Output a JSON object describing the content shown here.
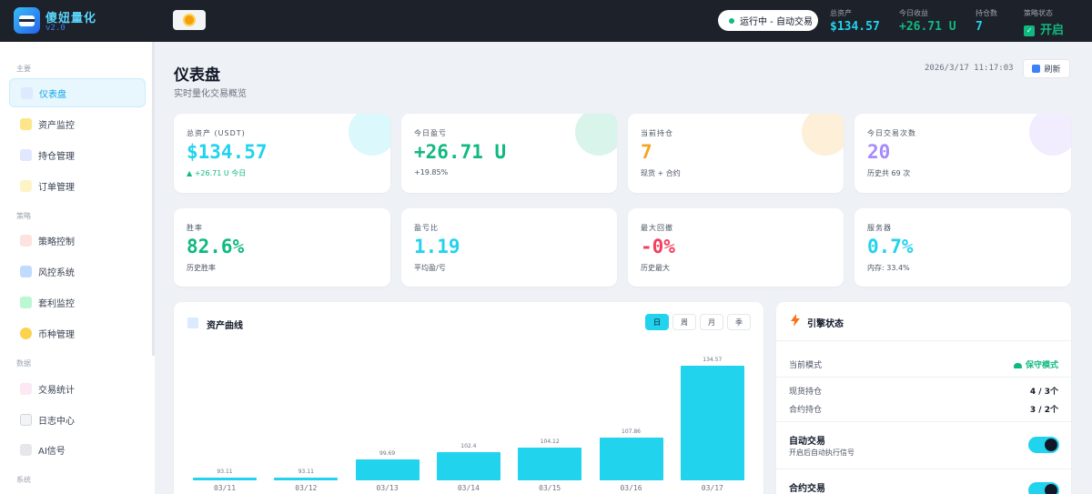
{
  "app": {
    "title": "傻妞量化",
    "version": "v2.0"
  },
  "topbar": {
    "run_status": "运行中 - 自动交易",
    "stats": [
      {
        "label": "总资产",
        "value": "$134.57",
        "color": "#22d3ee"
      },
      {
        "label": "今日收益",
        "value": "+26.71 U",
        "color": "#10b981"
      },
      {
        "label": "持仓数",
        "value": "7",
        "color": "#22d3ee"
      },
      {
        "label": "策略状态",
        "value": "开启",
        "color": "#10b981"
      }
    ]
  },
  "sidebar": {
    "sections": [
      {
        "title": "主要",
        "items": [
          "仪表盘",
          "资产监控",
          "持仓管理",
          "订单管理"
        ]
      },
      {
        "title": "策略",
        "items": [
          "策略控制",
          "风控系统",
          "套利监控",
          "币种管理"
        ]
      },
      {
        "title": "数据",
        "items": [
          "交易统计",
          "日志中心",
          "AI信号"
        ]
      },
      {
        "title": "系统",
        "items": []
      }
    ],
    "active": "仪表盘"
  },
  "page": {
    "title": "仪表盘",
    "subtitle": "实时量化交易概览",
    "datetime": "2026/3/17 11:17:03",
    "refresh_label": "刷新"
  },
  "cards": [
    {
      "label": "总资产 (USDT)",
      "value": "$134.57",
      "sub": "▲ +26.71 U 今日",
      "color": "cyan",
      "glow": "#22d3ee"
    },
    {
      "label": "今日盈亏",
      "value": "+26.71 U",
      "sub": "+19.85%",
      "color": "green",
      "glow": "#10b981"
    },
    {
      "label": "当前持仓",
      "value": "7",
      "sub": "现货 + 合约",
      "color": "orange",
      "glow": "#f59e0b"
    },
    {
      "label": "今日交易次数",
      "value": "20",
      "sub": "历史共 69 次",
      "color": "purple",
      "glow": "#a78bfa"
    },
    {
      "label": "胜率",
      "value": "82.6%",
      "sub": "历史胜率",
      "color": "green",
      "glow": "#ffffff"
    },
    {
      "label": "盈亏比",
      "value": "1.19",
      "sub": "平均盈/亏",
      "color": "cyan",
      "glow": "#ffffff"
    },
    {
      "label": "最大回撤",
      "value": "-0%",
      "sub": "历史最大",
      "color": "red",
      "glow": "#ffffff"
    },
    {
      "label": "服务器",
      "value": "0.7%",
      "sub": "内存: 33.4%",
      "color": "cyan",
      "glow": "#ffffff"
    }
  ],
  "asset_panel": {
    "title": "资产曲线",
    "ranges": [
      "日",
      "周",
      "月",
      "季"
    ],
    "active_range": "日"
  },
  "chart_data": {
    "type": "bar",
    "title": "资产曲线",
    "categories": [
      "03/11",
      "03/12",
      "03/13",
      "03/14",
      "03/15",
      "03/16",
      "03/17"
    ],
    "values": [
      93.11,
      93.11,
      99.69,
      102.4,
      104.12,
      107.86,
      134.57
    ],
    "value_labels": [
      "93.11",
      "93.11",
      "99.69",
      "102.4",
      "104.12",
      "107.86",
      "134.57"
    ],
    "ylim": [
      92,
      136
    ],
    "color": "#22d3ee",
    "grid": false
  },
  "engine": {
    "title": "引擎状态",
    "mode_label": "当前模式",
    "mode_value": "保守模式",
    "spot_label": "现货持仓",
    "spot_value": "4 / 3个",
    "contract_label": "合约持仓",
    "contract_value": "3 / 2个",
    "auto_trade": {
      "title": "自动交易",
      "desc": "开启后自动执行信号",
      "on": true
    },
    "contract_trade": {
      "title": "合约交易",
      "on": true
    }
  }
}
